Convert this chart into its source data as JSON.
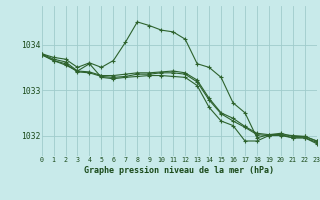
{
  "title": "Graphe pression niveau de la mer (hPa)",
  "background_color": "#c8eaea",
  "grid_color": "#a0cccc",
  "line_color": "#2d622d",
  "xlim": [
    0,
    23
  ],
  "ylim": [
    1031.55,
    1034.85
  ],
  "yticks": [
    1032,
    1033,
    1034
  ],
  "xticks": [
    0,
    1,
    2,
    3,
    4,
    5,
    6,
    7,
    8,
    9,
    10,
    11,
    12,
    13,
    14,
    15,
    16,
    17,
    18,
    19,
    20,
    21,
    22,
    23
  ],
  "series": [
    [
      1033.8,
      1033.72,
      1033.68,
      1033.5,
      1033.6,
      1033.5,
      1033.65,
      1034.05,
      1034.5,
      1034.42,
      1034.32,
      1034.28,
      1034.12,
      1033.58,
      1033.5,
      1033.28,
      1032.72,
      1032.5,
      1031.95,
      1032.02,
      1032.02,
      1032.0,
      1031.98,
      1031.88
    ],
    [
      1033.8,
      1033.68,
      1033.62,
      1033.42,
      1033.4,
      1033.32,
      1033.32,
      1033.35,
      1033.38,
      1033.38,
      1033.4,
      1033.42,
      1033.38,
      1033.22,
      1032.82,
      1032.5,
      1032.38,
      1032.2,
      1032.05,
      1032.02,
      1032.05,
      1031.98,
      1031.98,
      1031.88
    ],
    [
      1033.78,
      1033.65,
      1033.58,
      1033.4,
      1033.38,
      1033.3,
      1033.28,
      1033.3,
      1033.35,
      1033.35,
      1033.38,
      1033.38,
      1033.35,
      1033.18,
      1032.78,
      1032.48,
      1032.32,
      1032.18,
      1032.02,
      1032.0,
      1032.02,
      1031.95,
      1031.95,
      1031.85
    ],
    [
      1033.78,
      1033.65,
      1033.55,
      1033.42,
      1033.58,
      1033.28,
      1033.25,
      1033.28,
      1033.3,
      1033.32,
      1033.32,
      1033.3,
      1033.28,
      1033.1,
      1032.62,
      1032.32,
      1032.22,
      1031.88,
      1031.88,
      1032.0,
      1032.0,
      1031.95,
      1031.95,
      1031.82
    ]
  ]
}
